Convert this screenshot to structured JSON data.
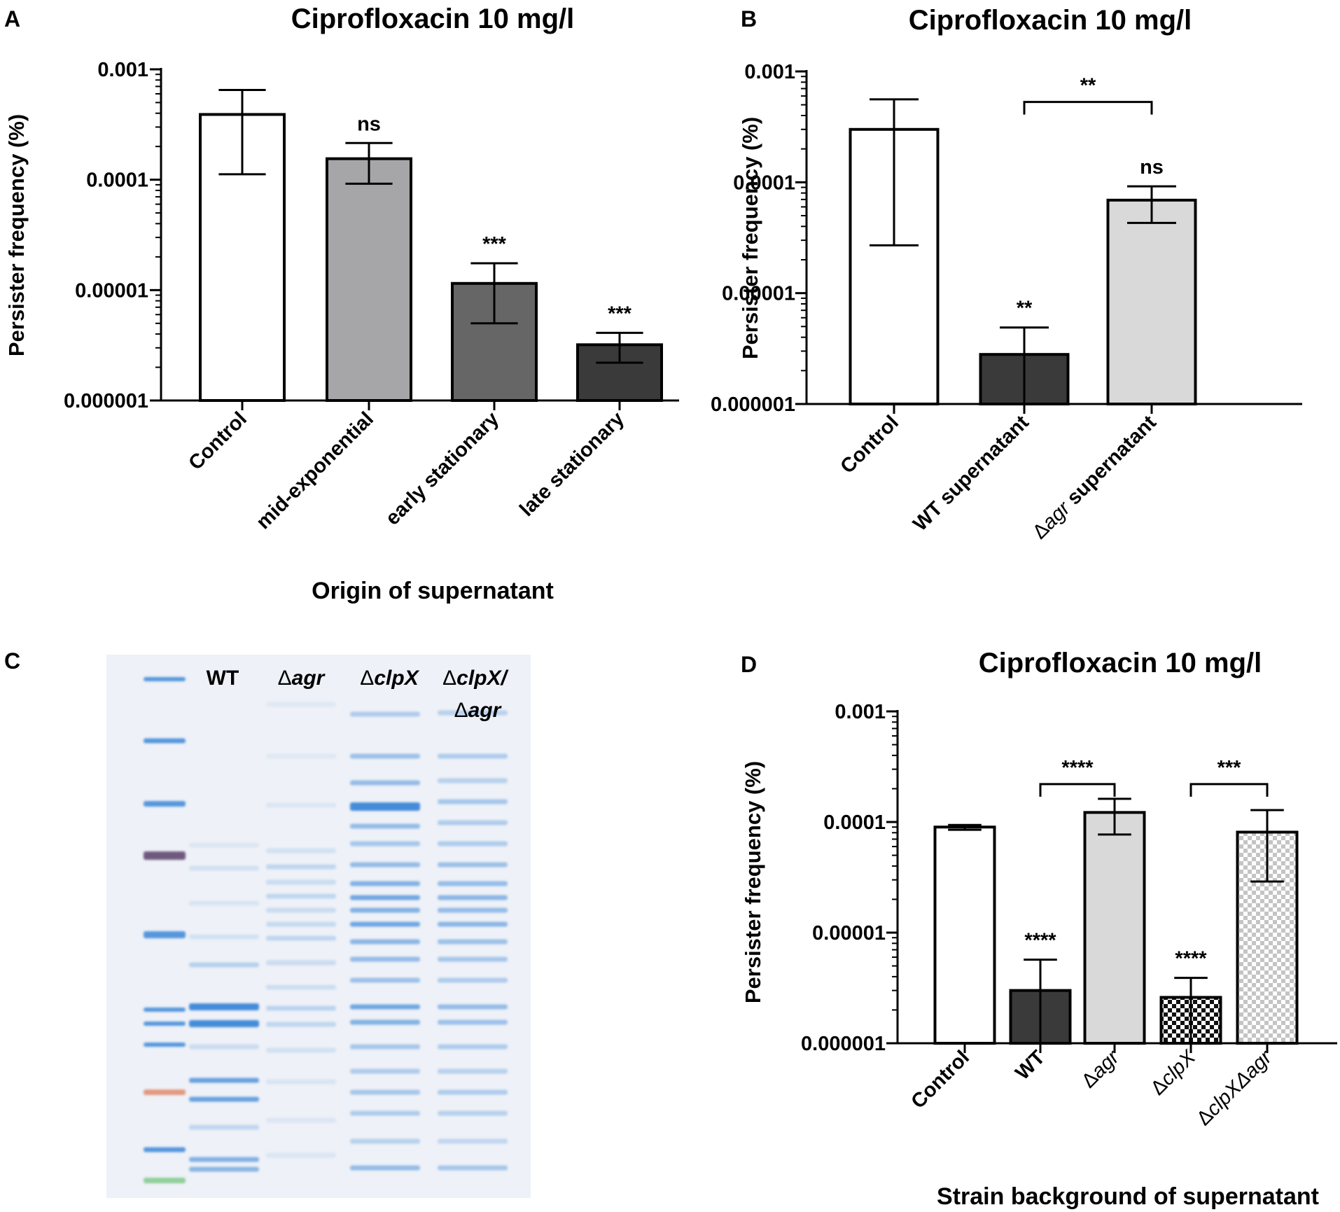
{
  "panels": {
    "A": {
      "letter": "A"
    },
    "B": {
      "letter": "B"
    },
    "C": {
      "letter": "C"
    },
    "D": {
      "letter": "D"
    }
  },
  "colors": {
    "white": "#ffffff",
    "light_gray": "#d9d9d9",
    "mid_gray": "#a6a6a9",
    "dark_gray": "#666666",
    "darker_gray": "#3a3a3a",
    "black": "#000000",
    "gel_bg": "#eef1f7",
    "gel_band": "#3a87d8",
    "ladder_purple": "#5a3f6a",
    "ladder_red": "#e08a6a",
    "ladder_green": "#7ec98a"
  },
  "gel": {
    "lanes": [
      {
        "label_prefix": "WT",
        "label_italic": "",
        "label_line2_prefix": "",
        "label_line2_italic": ""
      },
      {
        "label_prefix": "Δ",
        "label_italic": "agr",
        "label_line2_prefix": "",
        "label_line2_italic": ""
      },
      {
        "label_prefix": "Δ",
        "label_italic": "clpX",
        "label_line2_prefix": "",
        "label_line2_italic": ""
      },
      {
        "label_prefix": "Δ",
        "label_italic": "clpX/",
        "label_line2_prefix": "Δ",
        "label_line2_italic": "agr"
      }
    ]
  },
  "chart_data": [
    {
      "panel": "A",
      "type": "bar",
      "title": "Ciprofloxacin 10 mg/l",
      "xlabel": "Origin of supernatant",
      "ylabel": "Persister frequency (%)",
      "yscale": "log",
      "ylim": [
        1e-06,
        0.001
      ],
      "yticks": [
        {
          "value": 0.001,
          "label": "0.001"
        },
        {
          "value": 0.0001,
          "label": "0.0001"
        },
        {
          "value": 1e-05,
          "label": "0.00001"
        },
        {
          "value": 1e-06,
          "label": "0.000001"
        }
      ],
      "categories": [
        {
          "prefix": "Control",
          "italic": "",
          "suffix": ""
        },
        {
          "prefix": "mid-exponential",
          "italic": "",
          "suffix": ""
        },
        {
          "prefix": "early stationary",
          "italic": "",
          "suffix": ""
        },
        {
          "prefix": "late stationary",
          "italic": "",
          "suffix": ""
        }
      ],
      "values": [
        0.00039,
        0.000155,
        1.15e-05,
        3.2e-06
      ],
      "err_low": [
        0.000112,
        9.2e-05,
        5e-06,
        2.2e-06
      ],
      "err_high": [
        0.00065,
        0.000215,
        1.75e-05,
        4.1e-06
      ],
      "fills": [
        "white",
        "mid_gray",
        "dark_gray",
        "darker_gray"
      ],
      "annotations": [
        "",
        "ns",
        "***",
        "***"
      ],
      "brackets": []
    },
    {
      "panel": "B",
      "type": "bar",
      "title": "Ciprofloxacin 10 mg/l",
      "xlabel": "",
      "ylabel": "Persister frequency (%)",
      "yscale": "log",
      "ylim": [
        1e-06,
        0.001
      ],
      "yticks": [
        {
          "value": 0.001,
          "label": "0.001"
        },
        {
          "value": 0.0001,
          "label": "0.0001"
        },
        {
          "value": 1e-05,
          "label": "0.00001"
        },
        {
          "value": 1e-06,
          "label": "0.000001"
        }
      ],
      "categories": [
        {
          "prefix": "Control",
          "italic": "",
          "suffix": ""
        },
        {
          "prefix": "WT supernatant",
          "italic": "",
          "suffix": ""
        },
        {
          "prefix": "Δ",
          "italic": "agr",
          "suffix": " supernatant"
        }
      ],
      "values": [
        0.0003,
        2.8e-06,
        6.9e-05
      ],
      "err_low": [
        2.7e-05,
        1e-06,
        4.3e-05
      ],
      "err_high": [
        0.00056,
        4.9e-06,
        9.2e-05
      ],
      "fills": [
        "white",
        "darker_gray",
        "light_gray"
      ],
      "annotations": [
        "",
        "**",
        "ns"
      ],
      "brackets": [
        {
          "from": 1,
          "to": 2,
          "y": 0.00053,
          "label": "**"
        }
      ]
    },
    {
      "panel": "D",
      "type": "bar",
      "title": "Ciprofloxacin 10 mg/l",
      "xlabel": "Strain background of supernatant",
      "ylabel": "Persister frequency (%)",
      "yscale": "log",
      "ylim": [
        1e-06,
        0.001
      ],
      "yticks": [
        {
          "value": 0.001,
          "label": "0.001"
        },
        {
          "value": 0.0001,
          "label": "0.0001"
        },
        {
          "value": 1e-05,
          "label": "0.00001"
        },
        {
          "value": 1e-06,
          "label": "0.000001"
        }
      ],
      "categories": [
        {
          "prefix": "Control",
          "italic": "",
          "suffix": ""
        },
        {
          "prefix": "WT",
          "italic": "",
          "suffix": ""
        },
        {
          "prefix": "Δ",
          "italic": "agr",
          "suffix": ""
        },
        {
          "prefix": "Δ",
          "italic": "clpX",
          "suffix": ""
        },
        {
          "prefix": "Δ",
          "italic": "clpXΔagr",
          "suffix": ""
        }
      ],
      "values": [
        9e-05,
        3e-06,
        0.000122,
        2.6e-06,
        8.1e-05
      ],
      "err_low": [
        8.5e-05,
        1e-06,
        7.7e-05,
        1e-06,
        2.9e-05
      ],
      "err_high": [
        9.4e-05,
        5.7e-06,
        0.000162,
        3.9e-06,
        0.000128
      ],
      "fills": [
        "white",
        "darker_gray",
        "light_gray",
        "checker_dark",
        "checker_light"
      ],
      "annotations": [
        "",
        "****",
        "",
        "****",
        ""
      ],
      "brackets": [
        {
          "from": 1,
          "to": 2,
          "y": 0.00022,
          "label": "****"
        },
        {
          "from": 3,
          "to": 4,
          "y": 0.00022,
          "label": "***"
        }
      ]
    }
  ]
}
